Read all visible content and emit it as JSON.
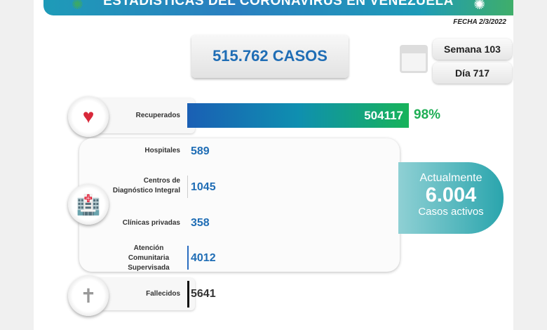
{
  "header": {
    "title": "ESTADÍSTICAS DEL CORONAVIRUS EN VENEZUELA",
    "fecha": "FECHA 2/3/2022"
  },
  "total": {
    "label": "515.762 CASOS"
  },
  "calendar": {
    "icon": "calendar-icon",
    "semana": "Semana 103",
    "dia": "Día 717"
  },
  "recuperados": {
    "label": "Recuperados",
    "value": "504117",
    "percent": "98%",
    "icon": "heart-icon"
  },
  "atendidos": {
    "icon": "hospital-icon",
    "items": [
      {
        "label": "Hospitales",
        "value": "589"
      },
      {
        "label": "Centros de Diagnóstico Integral",
        "value": "1045"
      },
      {
        "label": "Clínicas privadas",
        "value": "358"
      },
      {
        "label": "Atención Comunitaria Supervisada",
        "value": "4012"
      }
    ]
  },
  "activos": {
    "line1": "Actualmente",
    "value": "6.004",
    "line2": "Casos activos"
  },
  "fallecidos": {
    "label": "Fallecidos",
    "value": "5641",
    "icon": "tombstone-icon"
  },
  "colors": {
    "blue": "#1f6db5",
    "green": "#1fae55",
    "teal": "#2aa5ad"
  }
}
